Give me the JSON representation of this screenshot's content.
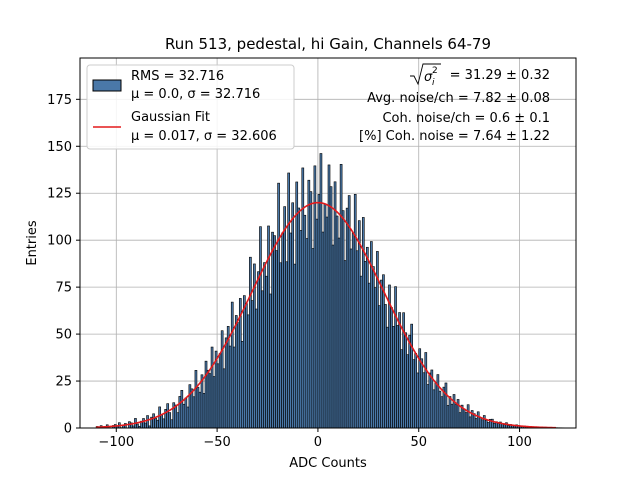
{
  "chart_data": {
    "type": "bar",
    "title": "Run 513, pedestal, hi Gain, Channels 64-79",
    "xlabel": "ADC Counts",
    "ylabel": "Entries",
    "xlim": [
      -118,
      128
    ],
    "ylim": [
      0,
      197
    ],
    "xticks": [
      -100,
      -50,
      0,
      50,
      100
    ],
    "xtick_labels": [
      "−100",
      "−50",
      "0",
      "50",
      "100"
    ],
    "yticks": [
      0,
      25,
      50,
      75,
      100,
      125,
      150,
      175
    ],
    "ytick_labels": [
      "0",
      "25",
      "50",
      "75",
      "100",
      "125",
      "150",
      "175"
    ],
    "grid": true,
    "legend_position": "top-left",
    "histogram": {
      "name": "RMS = 32.716",
      "name_line2": "μ = 0.0, σ = 32.716",
      "bin_start": -110,
      "bin_width": 1,
      "noise": [
        3,
        -2,
        5,
        -4,
        1,
        6,
        -3,
        -6,
        2,
        4,
        -1,
        7,
        -5,
        0,
        3,
        -7,
        5,
        2,
        -4,
        8,
        -2,
        -6,
        1,
        4,
        -3,
        6,
        -8,
        2,
        5,
        -1,
        -4,
        9,
        0,
        -5,
        3,
        7,
        -2,
        -9,
        4,
        1,
        -6,
        5,
        8,
        -3,
        0,
        -7,
        6,
        2,
        -4,
        10,
        -1,
        -5,
        3,
        -8,
        7,
        1,
        -2,
        9,
        -6,
        4,
        -3,
        0,
        8,
        -9,
        2,
        5,
        -4,
        11,
        -7,
        3,
        -1,
        6,
        -10,
        4,
        0,
        -5,
        12,
        -3,
        7,
        -8,
        2,
        14,
        -6,
        1,
        -4,
        9,
        -11,
        5,
        3,
        -2,
        15,
        -7,
        0,
        6,
        -9,
        13,
        -3,
        4,
        -12,
        8,
        1,
        -5,
        10,
        -2,
        -8,
        6,
        3,
        -11,
        9,
        -4,
        2,
        12,
        -7,
        0,
        -3,
        10,
        5,
        -9,
        7,
        -1,
        -6,
        13,
        2,
        -10,
        4,
        8,
        -5,
        0,
        11,
        -3,
        6,
        -8,
        9,
        -2,
        3,
        -6,
        7,
        1,
        -4,
        8,
        -7,
        2,
        5,
        -3,
        -9,
        6,
        0,
        -5,
        10,
        -2,
        4,
        -8,
        7,
        1,
        -6,
        3,
        9,
        -4,
        0,
        -7,
        5,
        2,
        -3,
        8,
        -6,
        1,
        4,
        -5,
        0,
        6,
        -2,
        -4,
        3,
        7,
        -6,
        1,
        -3,
        5,
        -1,
        4,
        -5,
        2,
        0,
        -2,
        6,
        -4,
        3,
        1,
        -3,
        5,
        0,
        -2,
        4,
        -1,
        -3,
        2,
        3,
        -2,
        1,
        -1,
        2,
        0,
        -1,
        3,
        -2,
        1,
        0,
        -1,
        2,
        1,
        -1,
        0,
        1,
        -1,
        0,
        1,
        0,
        -1,
        0,
        1,
        0,
        0,
        1,
        0,
        0,
        -1,
        0,
        1,
        0,
        0,
        0,
        0,
        0,
        0
      ],
      "color": "#4a78a8",
      "edge_color": "#000000"
    },
    "fit": {
      "name": "Gaussian Fit",
      "name_line2": "μ = 0.017, σ = 32.606",
      "type": "gaussian",
      "mu": 0.017,
      "sigma": 32.606,
      "amplitude": 120,
      "x_range": [
        -110,
        118
      ],
      "color": "#e31a1c"
    },
    "annotations": [
      "= 31.29 ± 0.32",
      "Avg. noise/ch = 7.82 ± 0.08",
      "Coh. noise/ch = 0.6 ± 0.1",
      "[%] Coh. noise = 7.64 ± 1.22"
    ]
  }
}
